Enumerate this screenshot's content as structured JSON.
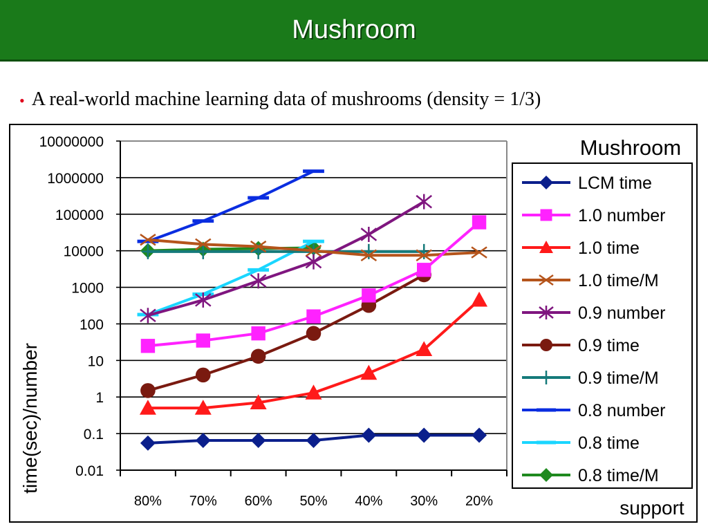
{
  "header": {
    "title": "Mushroom"
  },
  "bullet": {
    "text": "A real-world machine learning data of mushrooms (density = 1/3)"
  },
  "chart_data": {
    "type": "line",
    "title": "Mushroom",
    "xlabel": "support",
    "ylabel": "time(sec)/number",
    "yscale": "log",
    "ylim": [
      0.01,
      10000000
    ],
    "yticks": [
      "0.01",
      "0.1",
      "1",
      "10",
      "100",
      "1000",
      "10000",
      "100000",
      "1000000",
      "10000000"
    ],
    "categories": [
      "80%",
      "70%",
      "60%",
      "50%",
      "40%",
      "30%",
      "20%"
    ],
    "legend_position": "right",
    "series": [
      {
        "name": "LCM time",
        "color": "#0b1f8c",
        "marker": "diamond",
        "values": [
          0.055,
          0.065,
          0.065,
          0.065,
          0.09,
          0.09,
          0.09
        ]
      },
      {
        "name": "1.0 number",
        "color": "#ff22ff",
        "marker": "square",
        "values": [
          25,
          35,
          55,
          160,
          600,
          3000,
          60000
        ]
      },
      {
        "name": "1.0 time",
        "color": "#ff1a1a",
        "marker": "triangle",
        "values": [
          0.5,
          0.5,
          0.7,
          1.3,
          4.5,
          20,
          450
        ]
      },
      {
        "name": "1.0 time/M",
        "color": "#b5541b",
        "marker": "x",
        "values": [
          20000,
          15000,
          13000,
          10000,
          7500,
          7500,
          9000
        ]
      },
      {
        "name": "0.9 number",
        "color": "#7f167f",
        "marker": "asterisk",
        "values": [
          170,
          450,
          1500,
          5000,
          28000,
          220000,
          null
        ]
      },
      {
        "name": "0.9 time",
        "color": "#7a1a10",
        "marker": "circle",
        "values": [
          1.5,
          4,
          13,
          55,
          320,
          2200,
          null
        ]
      },
      {
        "name": "0.9 time/M",
        "color": "#157a7a",
        "marker": "plus",
        "values": [
          9500,
          9500,
          9500,
          9500,
          9500,
          9500,
          null
        ]
      },
      {
        "name": "0.8 number",
        "color": "#0a2de0",
        "marker": "dash",
        "values": [
          18000,
          65000,
          280000,
          1500000,
          null,
          null,
          null
        ]
      },
      {
        "name": "0.8 time",
        "color": "#1ad6ff",
        "marker": "dash",
        "values": [
          180,
          650,
          3000,
          18000,
          null,
          null,
          null
        ]
      },
      {
        "name": "0.8 time/M",
        "color": "#1f8a1f",
        "marker": "diamond",
        "values": [
          10000,
          11000,
          11500,
          12000,
          null,
          null,
          null
        ]
      }
    ]
  }
}
